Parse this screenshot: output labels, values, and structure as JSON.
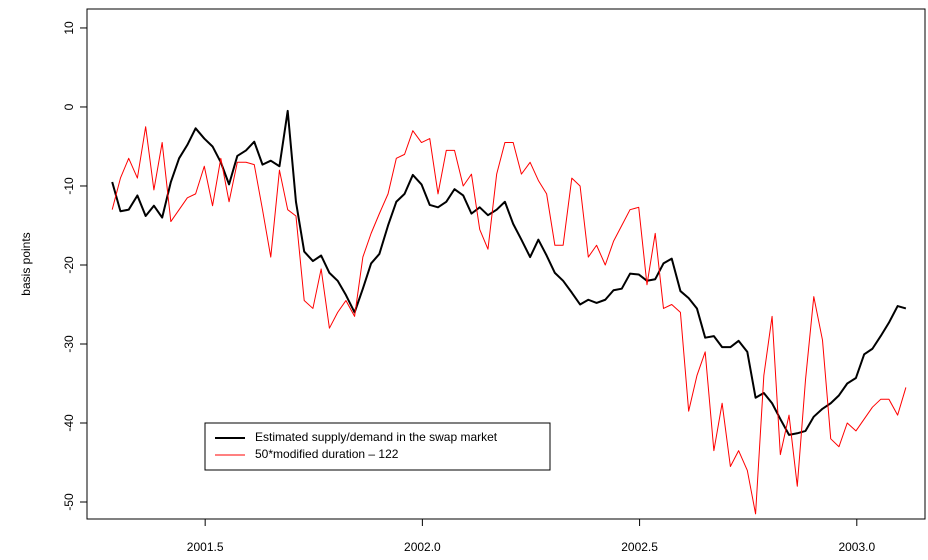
{
  "chart_data": {
    "type": "line",
    "y_label": "basis points",
    "xlim": [
      2001.228,
      2003.157
    ],
    "ylim": [
      -52.15,
      12.4
    ],
    "xticks": [
      2001.5,
      {
        "value": 2002.0,
        "label": "2002.0"
      },
      2002.5,
      {
        "value": 2003.0,
        "label": "2003.0"
      }
    ],
    "yticks": [
      -50,
      -40,
      -30,
      -20,
      -10,
      0,
      10
    ],
    "x": [
      2001.286,
      2001.305,
      2001.324,
      2001.344,
      2001.363,
      2001.382,
      2001.401,
      2001.421,
      2001.44,
      2001.459,
      2001.478,
      2001.498,
      2001.517,
      2001.536,
      2001.555,
      2001.574,
      2001.594,
      2001.613,
      2001.632,
      2001.651,
      2001.671,
      2001.69,
      2001.709,
      2001.728,
      2001.748,
      2001.767,
      2001.786,
      2001.805,
      2001.824,
      2001.844,
      2001.863,
      2001.882,
      2001.901,
      2001.921,
      2001.94,
      2001.959,
      2001.978,
      2001.998,
      2002.017,
      2002.036,
      2002.055,
      2002.074,
      2002.094,
      2002.113,
      2002.132,
      2002.151,
      2002.171,
      2002.19,
      2002.209,
      2002.228,
      2002.248,
      2002.267,
      2002.286,
      2002.305,
      2002.324,
      2002.344,
      2002.363,
      2002.382,
      2002.401,
      2002.421,
      2002.44,
      2002.459,
      2002.478,
      2002.498,
      2002.517,
      2002.536,
      2002.555,
      2002.574,
      2002.594,
      2002.613,
      2002.632,
      2002.651,
      2002.671,
      2002.69,
      2002.709,
      2002.728,
      2002.748,
      2002.767,
      2002.786,
      2002.805,
      2002.824,
      2002.844,
      2002.863,
      2002.882,
      2002.901,
      2002.921,
      2002.94,
      2002.959,
      2002.978,
      2002.998,
      2003.017,
      2003.036,
      2003.055,
      2003.074,
      2003.094,
      2003.113
    ],
    "series": [
      {
        "name": "Estimated supply/demand in the swap market",
        "color": "#000000",
        "width": 2,
        "values": [
          -9.5,
          -13.2,
          -13,
          -11.2,
          -13.8,
          -12.5,
          -14,
          -9.5,
          -6.5,
          -4.8,
          -2.7,
          -4,
          -5,
          -7,
          -9.8,
          -6.2,
          -5.5,
          -4.4,
          -7.3,
          -6.8,
          -7.5,
          -0.5,
          -12,
          -18.3,
          -19.5,
          -18.8,
          -21,
          -22,
          -23.8,
          -26,
          -23,
          -19.8,
          -18.6,
          -15,
          -12,
          -11,
          -8.6,
          -9.8,
          -12.4,
          -12.7,
          -12,
          -10.4,
          -11.2,
          -13.5,
          -12.7,
          -13.7,
          -13,
          -12,
          -14.8,
          -16.8,
          -19,
          -16.8,
          -18.8,
          -21,
          -22,
          -23.5,
          -25,
          -24.4,
          -24.8,
          -24.4,
          -23.2,
          -23,
          -21.1,
          -21.2,
          -22,
          -21.8,
          -19.8,
          -19.2,
          -23.3,
          -24.2,
          -25.5,
          -29.2,
          -29,
          -30.4,
          -30.4,
          -29.6,
          -31,
          -36.8,
          -36.2,
          -37.5,
          -39.5,
          -41.5,
          -41.3,
          -41,
          -39.2,
          -38.2,
          -37.5,
          -36.5,
          -35,
          -34.3,
          -31.3,
          -30.6,
          -29,
          -27.3,
          -25.2,
          -25.5
        ]
      },
      {
        "name": "50*modified duration – 122",
        "color": "#ff0000",
        "width": 1,
        "values": [
          -13,
          -9,
          -6.5,
          -9,
          -2.5,
          -10.5,
          -4.5,
          -14.5,
          -13,
          -11.5,
          -11,
          -7.5,
          -12.5,
          -6.5,
          -12,
          -7,
          -7,
          -7.3,
          -13,
          -19,
          -8,
          -13,
          -13.8,
          -24.5,
          -25.5,
          -20.5,
          -28,
          -26,
          -24.5,
          -26.5,
          -19,
          -16,
          -13.5,
          -11,
          -6.5,
          -6,
          -3,
          -4.5,
          -4,
          -11,
          -5.5,
          -5.5,
          -10,
          -8.5,
          -15.5,
          -18,
          -8.5,
          -4.5,
          -4.5,
          -8.5,
          -7,
          -9.3,
          -11,
          -17.5,
          -17.5,
          -9,
          -10,
          -19,
          -17.5,
          -20,
          -17,
          -15,
          -13,
          -12.7,
          -22.5,
          -16,
          -25.5,
          -25,
          -26,
          -38.5,
          -34,
          -31,
          -43.5,
          -37.5,
          -45.5,
          -43.5,
          -46,
          -51.5,
          -34,
          -26.5,
          -44,
          -39,
          -48,
          -34.5,
          -24,
          -29.5,
          -42,
          -43,
          -40,
          -41,
          -39.5,
          -38,
          -37,
          -37,
          -39,
          -35.5
        ]
      }
    ]
  }
}
